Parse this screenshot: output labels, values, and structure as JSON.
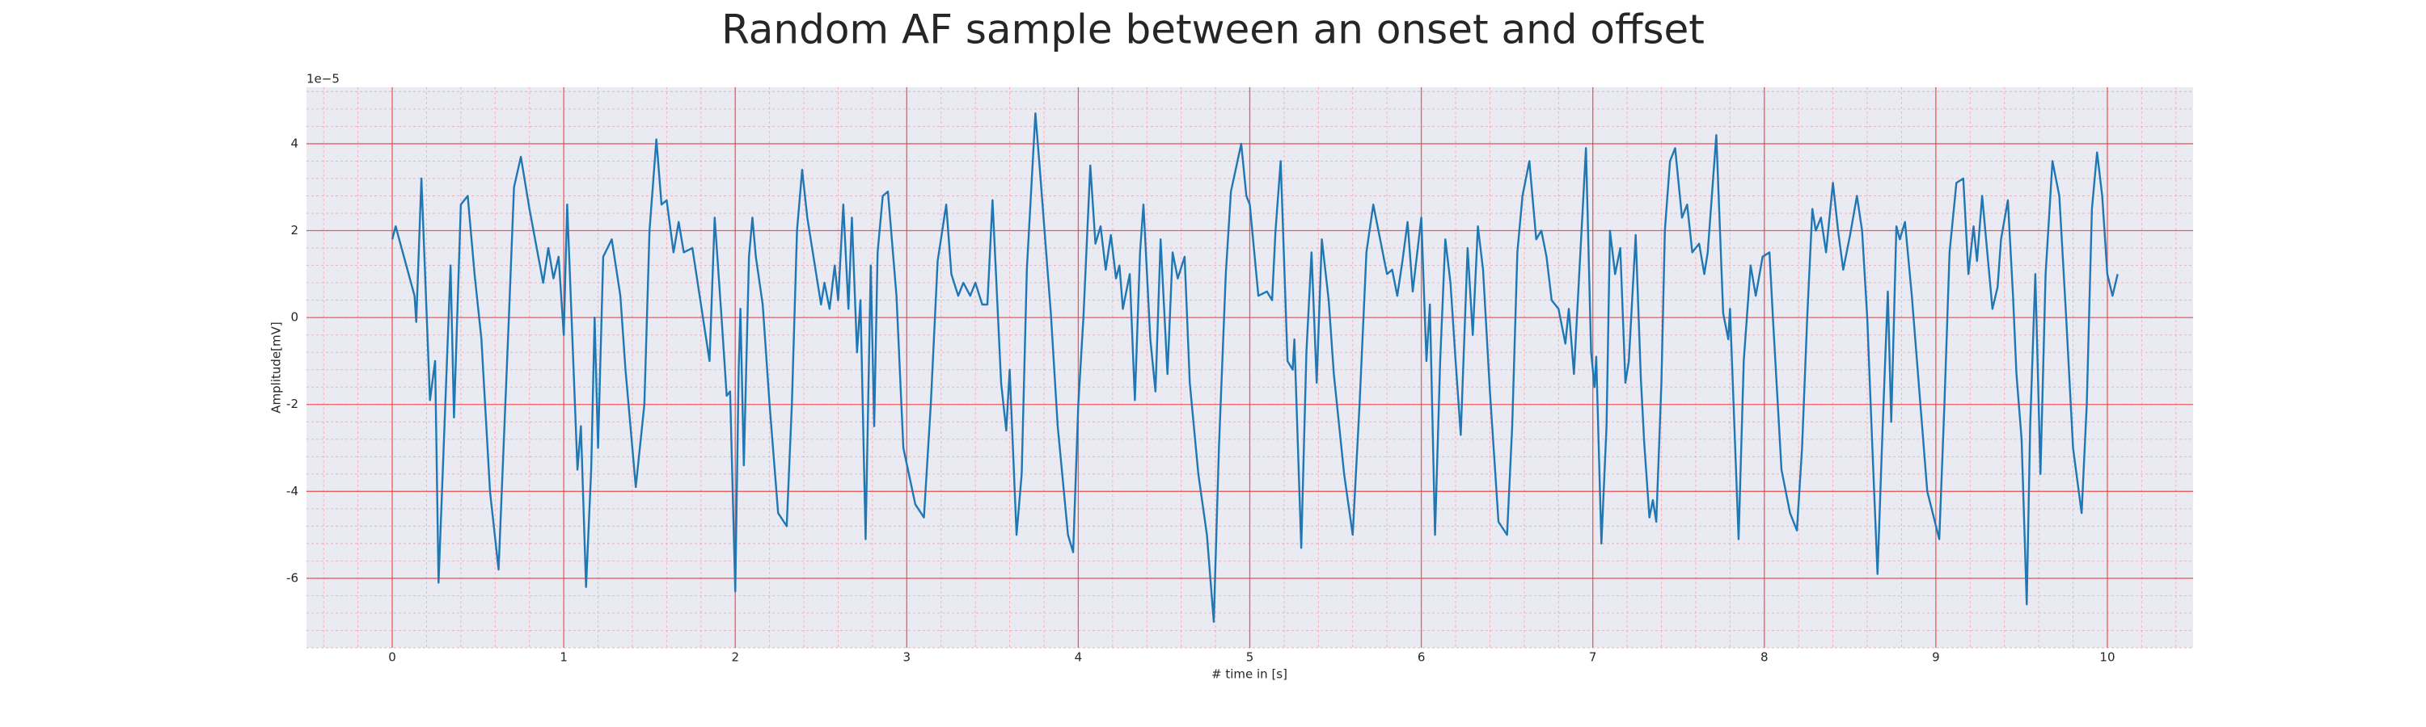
{
  "chart_data": {
    "type": "line",
    "title": "Random AF sample between an onset and offset",
    "x_label": "# time in [s]",
    "y_label": "Amplitude[mV]",
    "y_offset_label": "1e−5",
    "color": "#1f77b4",
    "grid": true,
    "minor_grid": true,
    "xlim": [
      -0.5,
      10.5
    ],
    "ylim": [
      -7.6,
      5.3
    ],
    "xticks": [
      0,
      1,
      2,
      3,
      4,
      5,
      6,
      7,
      8,
      9,
      10
    ],
    "yticks": [
      -6,
      -4,
      -2,
      0,
      2,
      4
    ],
    "x": [
      0,
      0.02,
      0.13,
      0.14,
      0.17,
      0.22,
      0.25,
      0.27,
      0.34,
      0.36,
      0.4,
      0.44,
      0.48,
      0.52,
      0.57,
      0.62,
      0.68,
      0.71,
      0.75,
      0.8,
      0.88,
      0.91,
      0.94,
      0.97,
      1.0,
      1.02,
      1.08,
      1.1,
      1.13,
      1.16,
      1.18,
      1.2,
      1.23,
      1.28,
      1.33,
      1.36,
      1.42,
      1.47,
      1.5,
      1.54,
      1.57,
      1.6,
      1.64,
      1.67,
      1.7,
      1.75,
      1.8,
      1.85,
      1.88,
      1.92,
      1.95,
      1.97,
      2.0,
      2.02,
      2.03,
      2.05,
      2.08,
      2.1,
      2.12,
      2.16,
      2.2,
      2.25,
      2.3,
      2.33,
      2.36,
      2.39,
      2.42,
      2.5,
      2.52,
      2.55,
      2.58,
      2.6,
      2.63,
      2.66,
      2.68,
      2.71,
      2.73,
      2.76,
      2.79,
      2.81,
      2.83,
      2.86,
      2.89,
      2.94,
      2.98,
      3.05,
      3.1,
      3.14,
      3.18,
      3.23,
      3.26,
      3.3,
      3.33,
      3.37,
      3.4,
      3.44,
      3.47,
      3.5,
      3.55,
      3.58,
      3.6,
      3.64,
      3.67,
      3.7,
      3.75,
      3.78,
      3.84,
      3.88,
      3.94,
      3.97,
      4.0,
      4.03,
      4.07,
      4.1,
      4.13,
      4.16,
      4.19,
      4.22,
      4.24,
      4.26,
      4.3,
      4.33,
      4.36,
      4.38,
      4.42,
      4.45,
      4.48,
      4.52,
      4.55,
      4.58,
      4.62,
      4.65,
      4.7,
      4.75,
      4.79,
      4.82,
      4.86,
      4.89,
      4.95,
      4.98,
      5.0,
      5.05,
      5.1,
      5.13,
      5.15,
      5.18,
      5.22,
      5.25,
      5.26,
      5.3,
      5.33,
      5.36,
      5.39,
      5.42,
      5.46,
      5.49,
      5.55,
      5.6,
      5.64,
      5.68,
      5.72,
      5.76,
      5.8,
      5.83,
      5.86,
      5.89,
      5.92,
      5.95,
      6.0,
      6.03,
      6.05,
      6.08,
      6.11,
      6.14,
      6.17,
      6.2,
      6.23,
      6.27,
      6.3,
      6.33,
      6.36,
      6.4,
      6.45,
      6.5,
      6.53,
      6.56,
      6.59,
      6.63,
      6.67,
      6.7,
      6.73,
      6.76,
      6.8,
      6.84,
      6.86,
      6.89,
      6.91,
      6.96,
      6.99,
      7.01,
      7.02,
      7.05,
      7.08,
      7.1,
      7.13,
      7.16,
      7.19,
      7.21,
      7.25,
      7.28,
      7.3,
      7.33,
      7.35,
      7.37,
      7.4,
      7.42,
      7.45,
      7.48,
      7.52,
      7.55,
      7.58,
      7.62,
      7.65,
      7.67,
      7.72,
      7.76,
      7.79,
      7.8,
      7.85,
      7.88,
      7.92,
      7.95,
      7.99,
      8.03,
      8.05,
      8.1,
      8.15,
      8.19,
      8.22,
      8.25,
      8.28,
      8.3,
      8.33,
      8.36,
      8.4,
      8.43,
      8.46,
      8.5,
      8.54,
      8.57,
      8.6,
      8.63,
      8.66,
      8.69,
      8.72,
      8.74,
      8.77,
      8.79,
      8.82,
      8.86,
      8.9,
      8.95,
      9.02,
      9.05,
      9.08,
      9.12,
      9.16,
      9.19,
      9.22,
      9.24,
      9.27,
      9.3,
      9.33,
      9.36,
      9.38,
      9.42,
      9.45,
      9.47,
      9.48,
      9.5,
      9.53,
      9.55,
      9.58,
      9.61,
      9.64,
      9.68,
      9.72,
      9.76,
      9.8,
      9.85,
      9.88,
      9.91,
      9.94,
      9.97,
      10.0,
      10.03,
      10.06
    ],
    "values": [
      1.8,
      2.1,
      0.5,
      -0.1,
      3.2,
      -1.9,
      -1.0,
      -6.1,
      1.2,
      -2.3,
      2.6,
      2.8,
      1.0,
      -0.5,
      -4.0,
      -5.8,
      0,
      3.0,
      3.7,
      2.5,
      0.8,
      1.6,
      0.9,
      1.4,
      -0.4,
      2.6,
      -3.5,
      -2.5,
      -6.2,
      -3.5,
      0,
      -3.0,
      1.4,
      1.8,
      0.5,
      -1.2,
      -3.9,
      -2,
      2,
      4.1,
      2.6,
      2.7,
      1.5,
      2.2,
      1.5,
      1.6,
      0.3,
      -1.0,
      2.3,
      0,
      -1.8,
      -1.7,
      -6.3,
      -1.2,
      0.2,
      -3.4,
      1.4,
      2.3,
      1.4,
      0.3,
      -2.0,
      -4.5,
      -4.8,
      -2,
      2.0,
      3.4,
      2.3,
      0.3,
      0.8,
      0.2,
      1.2,
      0.4,
      2.6,
      0.2,
      2.3,
      -0.8,
      0.4,
      -5.1,
      1.2,
      -2.5,
      1.5,
      2.8,
      2.9,
      0.5,
      -3,
      -4.3,
      -4.6,
      -2,
      1.3,
      2.6,
      1,
      0.5,
      0.8,
      0.5,
      0.8,
      0.3,
      0.3,
      2.7,
      -1.5,
      -2.6,
      -1.2,
      -5.0,
      -3.6,
      1.1,
      4.7,
      3.2,
      0.1,
      -2.5,
      -5.0,
      -5.4,
      -2,
      0,
      3.5,
      1.7,
      2.1,
      1.1,
      1.9,
      0.9,
      1.2,
      0.2,
      1.0,
      -1.9,
      1.5,
      2.6,
      -0.5,
      -1.7,
      1.8,
      -1.3,
      1.5,
      0.9,
      1.4,
      -1.5,
      -3.6,
      -5.0,
      -7.0,
      -3,
      1,
      2.9,
      4.0,
      2.8,
      2.6,
      0.5,
      0.6,
      0.4,
      2.0,
      3.6,
      -1.0,
      -1.2,
      -0.5,
      -5.3,
      -0.8,
      1.5,
      -1.5,
      1.8,
      0.4,
      -1.3,
      -3.6,
      -5.0,
      -2,
      1.5,
      2.6,
      1.8,
      1.0,
      1.1,
      0.5,
      1.3,
      2.2,
      0.6,
      2.3,
      -1,
      0.3,
      -5.0,
      -1,
      1.8,
      0.8,
      -1,
      -2.7,
      1.6,
      -0.4,
      2.1,
      1.1,
      -1.7,
      -4.7,
      -5.0,
      -2.5,
      1.5,
      2.8,
      3.6,
      1.8,
      2.0,
      1.4,
      0.4,
      0.2,
      -0.6,
      0.2,
      -1.3,
      0.2,
      3.9,
      -0.8,
      -1.6,
      -0.9,
      -5.2,
      -2.5,
      2.0,
      1,
      1.6,
      -1.5,
      -1.0,
      1.9,
      -1.4,
      -2.9,
      -4.6,
      -4.2,
      -4.7,
      -1.5,
      2.0,
      3.6,
      3.9,
      2.3,
      2.6,
      1.5,
      1.7,
      1.0,
      1.5,
      4.2,
      0.1,
      -0.5,
      0.2,
      -5.1,
      -1,
      1.2,
      0.5,
      1.4,
      1.5,
      0,
      -3.5,
      -4.5,
      -4.9,
      -3,
      0,
      2.5,
      2.0,
      2.3,
      1.5,
      3.1,
      2,
      1.1,
      1.9,
      2.8,
      2.0,
      0,
      -3,
      -5.9,
      -2.5,
      0.6,
      -2.4,
      2.1,
      1.8,
      2.2,
      0.5,
      -1.5,
      -4,
      -5.1,
      -2,
      1.5,
      3.1,
      3.2,
      1,
      2.1,
      1.3,
      2.8,
      1.5,
      0.2,
      0.7,
      1.8,
      2.7,
      0.5,
      -1.3,
      -1.8,
      -2.8,
      -6.6,
      -2.5,
      1.0,
      -3.6,
      1,
      3.6,
      2.8,
      0,
      -3,
      -4.5,
      -2,
      2.5,
      3.8,
      2.8,
      1.0,
      0.5,
      1.0
    ]
  }
}
